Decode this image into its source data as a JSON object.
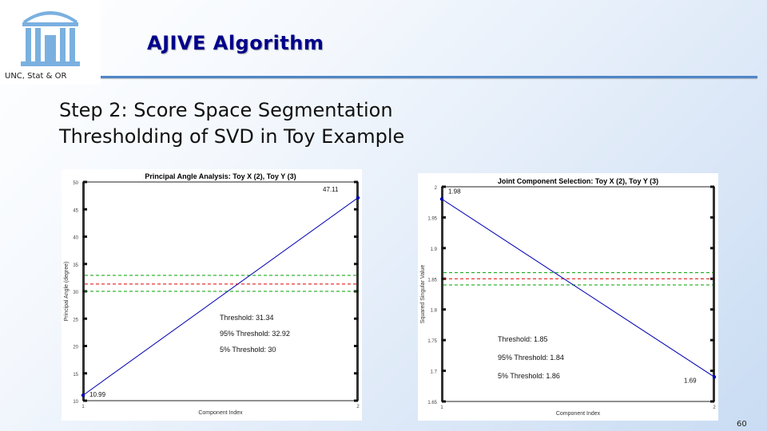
{
  "header": {
    "title": "AJIVE Algorithm",
    "org": "UNC, Stat & OR"
  },
  "subtitle": {
    "line1": "Step 2: Score Space Segmentation",
    "line2": "Thresholding of SVD in Toy Example"
  },
  "page_number": "60",
  "colors": {
    "title": "#00008b",
    "rule": "#4f86c6",
    "series": "#0000b4",
    "threshold": "#e00000",
    "bound": "#00a000"
  },
  "chart_data": [
    {
      "type": "line",
      "title": "Principal Angle Analysis: Toy X (2), Toy Y (3)",
      "xlabel": "Component Index",
      "ylabel": "Principal Angle (degree)",
      "xlim": [
        1,
        2
      ],
      "ylim": [
        10,
        50
      ],
      "x_ticks": [
        "1",
        "2"
      ],
      "y_ticks": [
        "10",
        "15",
        "20",
        "25",
        "30",
        "35",
        "40",
        "45",
        "50"
      ],
      "x": [
        1,
        2
      ],
      "y": [
        10.99,
        47.11
      ],
      "point_labels": [
        "10.99",
        "47.11"
      ],
      "thresholds": [
        {
          "value": 31.34,
          "style": "red-dashed"
        },
        {
          "value": 32.92,
          "style": "green-dashed"
        },
        {
          "value": 30,
          "style": "green-dashed"
        }
      ],
      "annotations": [
        "Threshold: 31.34",
        "95% Threshold: 32.92",
        "5% Threshold: 30"
      ]
    },
    {
      "type": "line",
      "title": "Joint Component Selection: Toy X (2), Toy Y (3)",
      "xlabel": "Component Index",
      "ylabel": "Squared Singular Value",
      "xlim": [
        1,
        2
      ],
      "ylim": [
        1.65,
        2
      ],
      "x_ticks": [
        "1",
        "2"
      ],
      "y_ticks": [
        "1.65",
        "1.7",
        "1.75",
        "1.8",
        "1.85",
        "1.9",
        "1.95",
        "2"
      ],
      "x": [
        1,
        2
      ],
      "y": [
        1.98,
        1.69
      ],
      "point_labels": [
        "1.98",
        "1.69"
      ],
      "thresholds": [
        {
          "value": 1.85,
          "style": "red-dashed"
        },
        {
          "value": 1.84,
          "style": "green-dashed"
        },
        {
          "value": 1.86,
          "style": "green-dashed"
        }
      ],
      "annotations": [
        "Threshold: 1.85",
        "95% Threshold: 1.84",
        "5% Threshold: 1.86"
      ]
    }
  ]
}
